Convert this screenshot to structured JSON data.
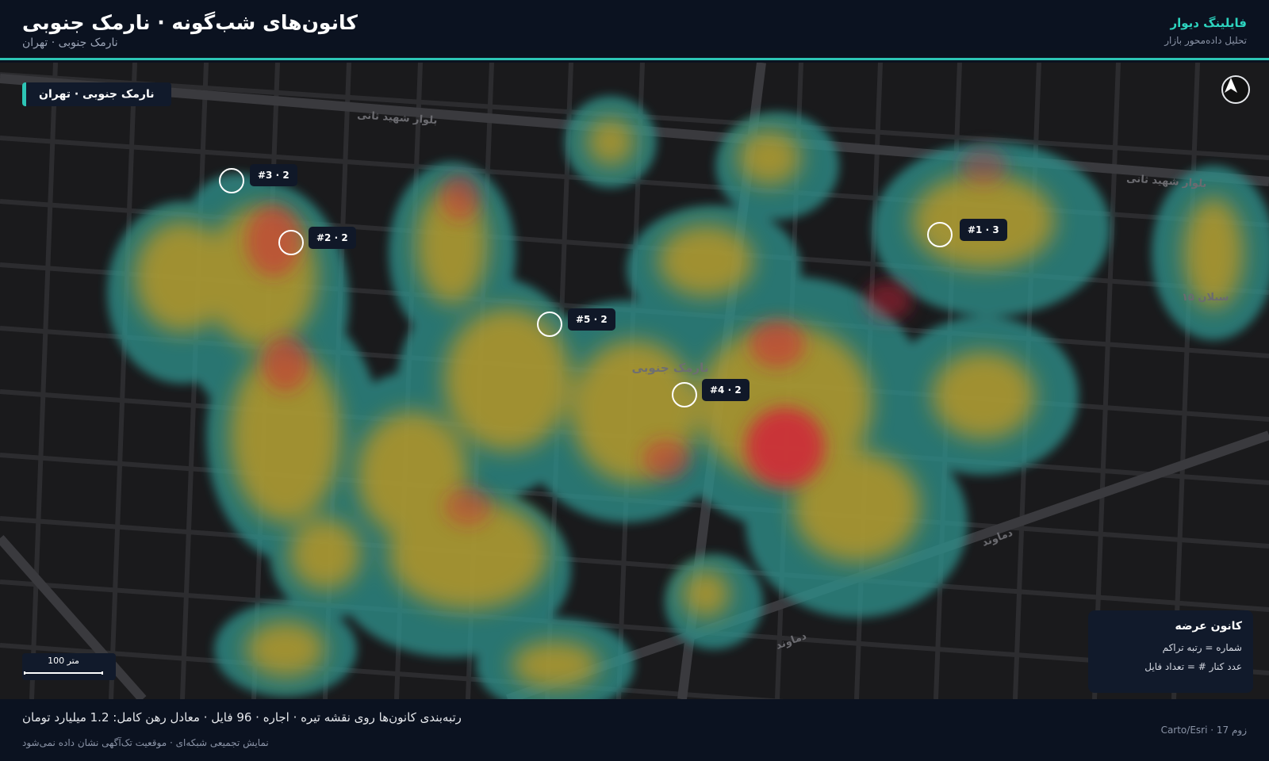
{
  "header": {
    "title": "کانون‌های شب‌گونه · نارمک جنوبی",
    "subtitle": "نارمک جنوبی · تهران",
    "brand_name": "فایلینگ دیوار",
    "brand_tagline": "تحلیل داده‌محور بازار"
  },
  "map": {
    "location_chip": "نارمک جنوبی · تهران",
    "neighborhood_label": "نارمک جنوبی",
    "north_icon": "north-arrow-icon",
    "street_labels": [
      "بلوار شهید ثانی",
      "بلوار شهید ثانی",
      "دماوند",
      "دماوند",
      "سبلان ۱۵"
    ],
    "clusters": [
      {
        "rank": "#1",
        "count": 3,
        "label": "#1 · 3"
      },
      {
        "rank": "#2",
        "count": 2,
        "label": "#2 · 2"
      },
      {
        "rank": "#3",
        "count": 2,
        "label": "#3 · 2"
      },
      {
        "rank": "#4",
        "count": 2,
        "label": "#4 · 2"
      },
      {
        "rank": "#5",
        "count": 2,
        "label": "#5 · 2"
      }
    ],
    "scale": {
      "label": "100 متر"
    },
    "legend": {
      "title": "کانون عرضه",
      "rows": [
        "شماره = رتبه تراکم",
        "عدد کنار # = تعداد فایل"
      ]
    },
    "colors": {
      "accent": "#2dc5b6",
      "hot": "#d0243a",
      "warm": "#c89a1e",
      "cool": "#2f8f8a"
    }
  },
  "footer": {
    "summary": "رتبه‌بندی کانون‌ها روی نقشه تیره · اجاره · 96 فایل · معادل رهن کامل: 1.2 میلیارد تومان",
    "note": "نمایش تجمیعی شبکه‌ای · موقعیت تک‌آگهی نشان داده نمی‌شود",
    "attribution": "زوم 17 · Carto/Esri"
  }
}
